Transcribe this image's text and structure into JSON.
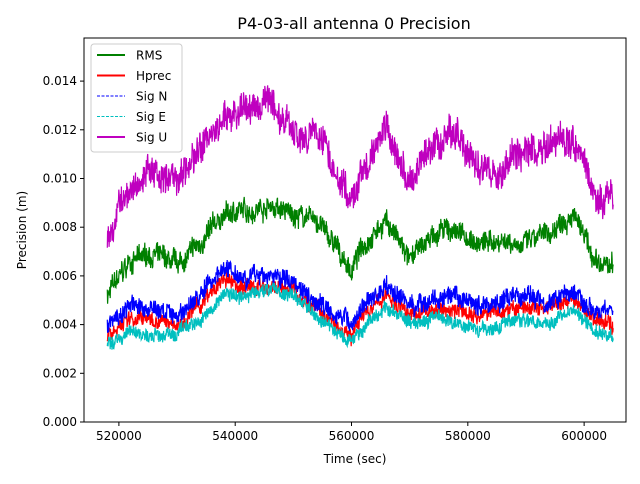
{
  "chart_data": {
    "type": "line",
    "title": "P4-03-all antenna 0 Precision",
    "xlabel": "Time (sec)",
    "ylabel": "Precision (m)",
    "xlim": [
      514000,
      607200
    ],
    "ylim": [
      0,
      0.01577
    ],
    "xticks": [
      520000,
      540000,
      560000,
      580000,
      600000
    ],
    "xtick_labels": [
      "520000",
      "540000",
      "560000",
      "580000",
      "600000"
    ],
    "yticks": [
      0,
      0.002,
      0.004,
      0.006,
      0.008,
      0.01,
      0.012,
      0.014
    ],
    "ytick_labels": [
      "0.000",
      "0.002",
      "0.004",
      "0.006",
      "0.008",
      "0.010",
      "0.012",
      "0.014"
    ],
    "legend_position": "top-left",
    "x": [
      518000,
      522000,
      526000,
      530000,
      534000,
      538000,
      542000,
      546000,
      550000,
      554000,
      558000,
      560000,
      562000,
      566000,
      570000,
      574000,
      578000,
      582000,
      586000,
      590000,
      594000,
      598000,
      602000,
      605000
    ],
    "series": [
      {
        "name": "RMS",
        "color": "#008000",
        "dash": "solid",
        "noise": 0.0004,
        "values": [
          0.0052,
          0.0066,
          0.0069,
          0.0064,
          0.0073,
          0.0085,
          0.0087,
          0.0089,
          0.0085,
          0.0083,
          0.0069,
          0.0062,
          0.0073,
          0.0083,
          0.0066,
          0.0077,
          0.0079,
          0.0073,
          0.0075,
          0.0073,
          0.0077,
          0.0087,
          0.0064,
          0.0064
        ]
      },
      {
        "name": "Hprec",
        "color": "#ff0000",
        "dash": "solid",
        "noise": 0.0003,
        "values": [
          0.0036,
          0.0043,
          0.0042,
          0.004,
          0.0048,
          0.0058,
          0.0055,
          0.0056,
          0.0054,
          0.0046,
          0.004,
          0.0036,
          0.0043,
          0.0052,
          0.0044,
          0.0046,
          0.0046,
          0.0044,
          0.0046,
          0.0047,
          0.0046,
          0.005,
          0.0042,
          0.004
        ]
      },
      {
        "name": "Sig N",
        "color": "#0000ff",
        "dash": "dashed",
        "noise": 0.00035,
        "values": [
          0.004,
          0.0048,
          0.0046,
          0.0044,
          0.0052,
          0.0064,
          0.006,
          0.006,
          0.0058,
          0.005,
          0.0044,
          0.004,
          0.0048,
          0.0056,
          0.0048,
          0.005,
          0.005,
          0.0048,
          0.005,
          0.0052,
          0.005,
          0.0054,
          0.0046,
          0.0046
        ]
      },
      {
        "name": "Sig E",
        "color": "#00bfbf",
        "dash": "dashed",
        "noise": 0.00025,
        "values": [
          0.0031,
          0.0037,
          0.0035,
          0.0036,
          0.0042,
          0.0052,
          0.0052,
          0.0055,
          0.0052,
          0.0043,
          0.0036,
          0.0032,
          0.0039,
          0.0047,
          0.0041,
          0.0043,
          0.0041,
          0.0038,
          0.004,
          0.0042,
          0.0041,
          0.0047,
          0.0037,
          0.0035
        ]
      },
      {
        "name": "Sig U",
        "color": "#bf00bf",
        "dash": "solid",
        "noise": 0.0006,
        "values": [
          0.0075,
          0.0099,
          0.0103,
          0.0097,
          0.0112,
          0.0124,
          0.0128,
          0.0132,
          0.012,
          0.012,
          0.0101,
          0.0089,
          0.0103,
          0.012,
          0.0097,
          0.0112,
          0.012,
          0.0101,
          0.0105,
          0.011,
          0.0114,
          0.012,
          0.0093,
          0.0093
        ]
      }
    ]
  }
}
